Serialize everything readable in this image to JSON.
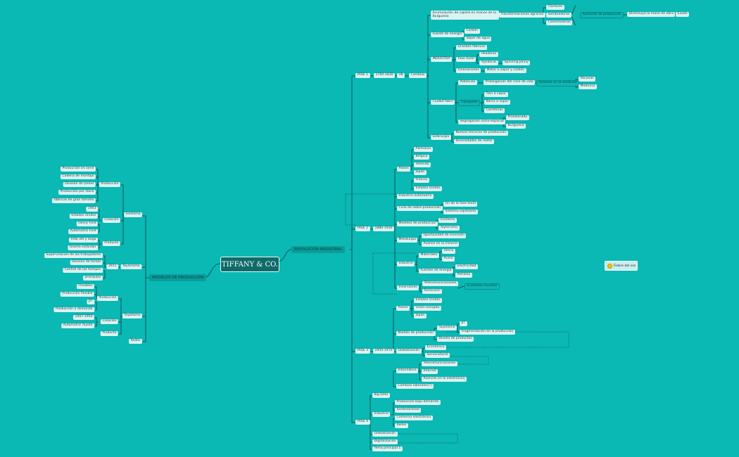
{
  "root": {
    "label": "TIFFANY & CO."
  },
  "left_main": {
    "label": "MODELOS DE PRODUCCIÓN"
  },
  "right_main": {
    "label": "REVOLUCIÓN INDUSTRIAL"
  },
  "legend": {
    "label": "Fiebre del oro",
    "color": "#f2c200"
  },
  "left": {
    "fordismo": {
      "label": "Fordismo",
      "produccion": {
        "label": "Producción",
        "items": [
          "Producción en serie",
          "Cadena de montaje",
          "División de tareas",
          "Producción por stock",
          "Fábricas de gran tamaño"
        ]
      },
      "creacion": {
        "label": "Creación",
        "items": [
          "1903",
          "Estados Unidos",
          "Henry Ford",
          "Automotriz Ford"
        ]
      },
      "producto": {
        "label": "Producto",
        "items": [
          "Vida útil y larga",
          "Diseño estándar"
        ]
      }
    },
    "taylorismo": {
      "label": "Taylorismo",
      "year": "1911",
      "items": [
        "Supervisacion de los trabajadores",
        "Division de tareas",
        "Control de los tiempos",
        "Jerarquías"
      ]
    },
    "toyotismo": {
      "label": "Toyotismo",
      "produccion": {
        "label": "Producción",
        "items": [
          "Flexibles",
          "Producción flexible",
          "JIT",
          "Producción a demanda"
        ]
      },
      "creacion": {
        "label": "Creación",
        "items": [
          "1947-1950",
          "Automotriz Toyota"
        ]
      },
      "producto": {
        "label": "Producto"
      }
    },
    "redes": {
      "label": "Redes"
    }
  },
  "fase1": {
    "label": "FASE 1",
    "years": "1760-1830",
    "country": "UK",
    "cambios": "Cambios",
    "acumulacion": "Acumulación de capital en manos de la Burguesía",
    "transformaciones": "Transformaciones agrarias",
    "agrarias": [
      "Tractores",
      "Sembradoras",
      "Cosechadoras"
    ],
    "aumento": "Aumento de producción",
    "disminuye": "Disminuye la mano de obra",
    "exodo": "Éxodo",
    "fuente": "Fuente de energía",
    "energias": [
      "Carbón",
      "Vapor de agua"
    ],
    "industria": "INDUSTRIA",
    "grandes": "Grandes fábricas",
    "fase_textil": "Fase textil",
    "hiladoras": "Hiladoras",
    "tejedoras": "Tejedoras",
    "spinning": "Spinning Jenny",
    "innovaciones": "Innovaciones",
    "motor": "Motor a vapor y carbón",
    "ciudad": "Ciudad fabril",
    "poblacion": "Población",
    "prolongacion": "Prolongación del ciclo de vida",
    "avances_med": "Avances en la medicina",
    "medicina": [
      "Vacunas",
      "Medicina"
    ],
    "transporte": "Transporte",
    "transportes": [
      "Tren a vapor",
      "Barco a vapor",
      "Carreteras"
    ],
    "segregacion": "Segregacion socio-espacial",
    "clases": [
      "Proletariado",
      "Burguesía"
    ],
    "siderurgia": "Siderurgia",
    "siderurgia_items": [
      "Nuevas tecnicas de producción",
      "Diversidades de metal"
    ]
  },
  "fase2": {
    "label": "FASE 2",
    "years": "1880-1930",
    "paises": "Países",
    "paises_items": [
      "Alemania",
      "Bélgica",
      "Holanda",
      "Japón",
      "Francia",
      "Estados Unidos"
    ],
    "automotriz": "Industria automotriz",
    "ciclo": "Ciclo de sobre-producción",
    "ciclo_items": [
      "Fin de la fase textil",
      "Sistema capitalista"
    ],
    "modelos": "Modelos de producción",
    "modelos_items": [
      "Fordismo",
      "Taylorismo"
    ],
    "metalurgia": "Metalurgia",
    "metalurgia_items": [
      "Oportunidad de inversión",
      "Avance en la minería"
    ],
    "industria": "Industria",
    "materiales": "Materiales",
    "materiales_items": [
      "Hierro",
      "Acero"
    ],
    "fuentes": "Fuentes de energía",
    "fuentes_items": [
      "Electricidad",
      "Petróleo"
    ],
    "inversiones": "Inversiones",
    "inversiones_items": [
      "Telecomunicaciones",
      "Ferrocarril"
    ],
    "economia": "Economia mundial"
  },
  "fase3": {
    "label": "FASE 3",
    "years": "1950-1970",
    "paises": "Países",
    "paises_items": [
      "Estados Unidos",
      "Unión europea",
      "Japón"
    ],
    "modelo": "Modelo de producción",
    "toyotismo": "Toyotismo",
    "jit": "JIT",
    "fragmentacion": "Fragmentación en la producción",
    "diseno": "Diseño de productos",
    "globalizacion": "Globalización",
    "glob_items": [
      "Económica",
      "Sociocultural"
    ],
    "informatica": "Informática",
    "info_items": [
      "Telecomunicaciones",
      "Internet",
      "Avances en la electrónica"
    ],
    "cambios": "Cambios laborales(?)"
  },
  "fase4": {
    "label": "FASE 4",
    "bigdata": "Big Data",
    "industria": "Industria",
    "industria_items": [
      "Producción bajo demanda",
      "Sostenibilidad",
      "Comercio electrónico",
      "Redes"
    ],
    "globalizacion": "Globalización",
    "digitalizacion": "Digitalización",
    "tema": "Tema principal 1"
  }
}
